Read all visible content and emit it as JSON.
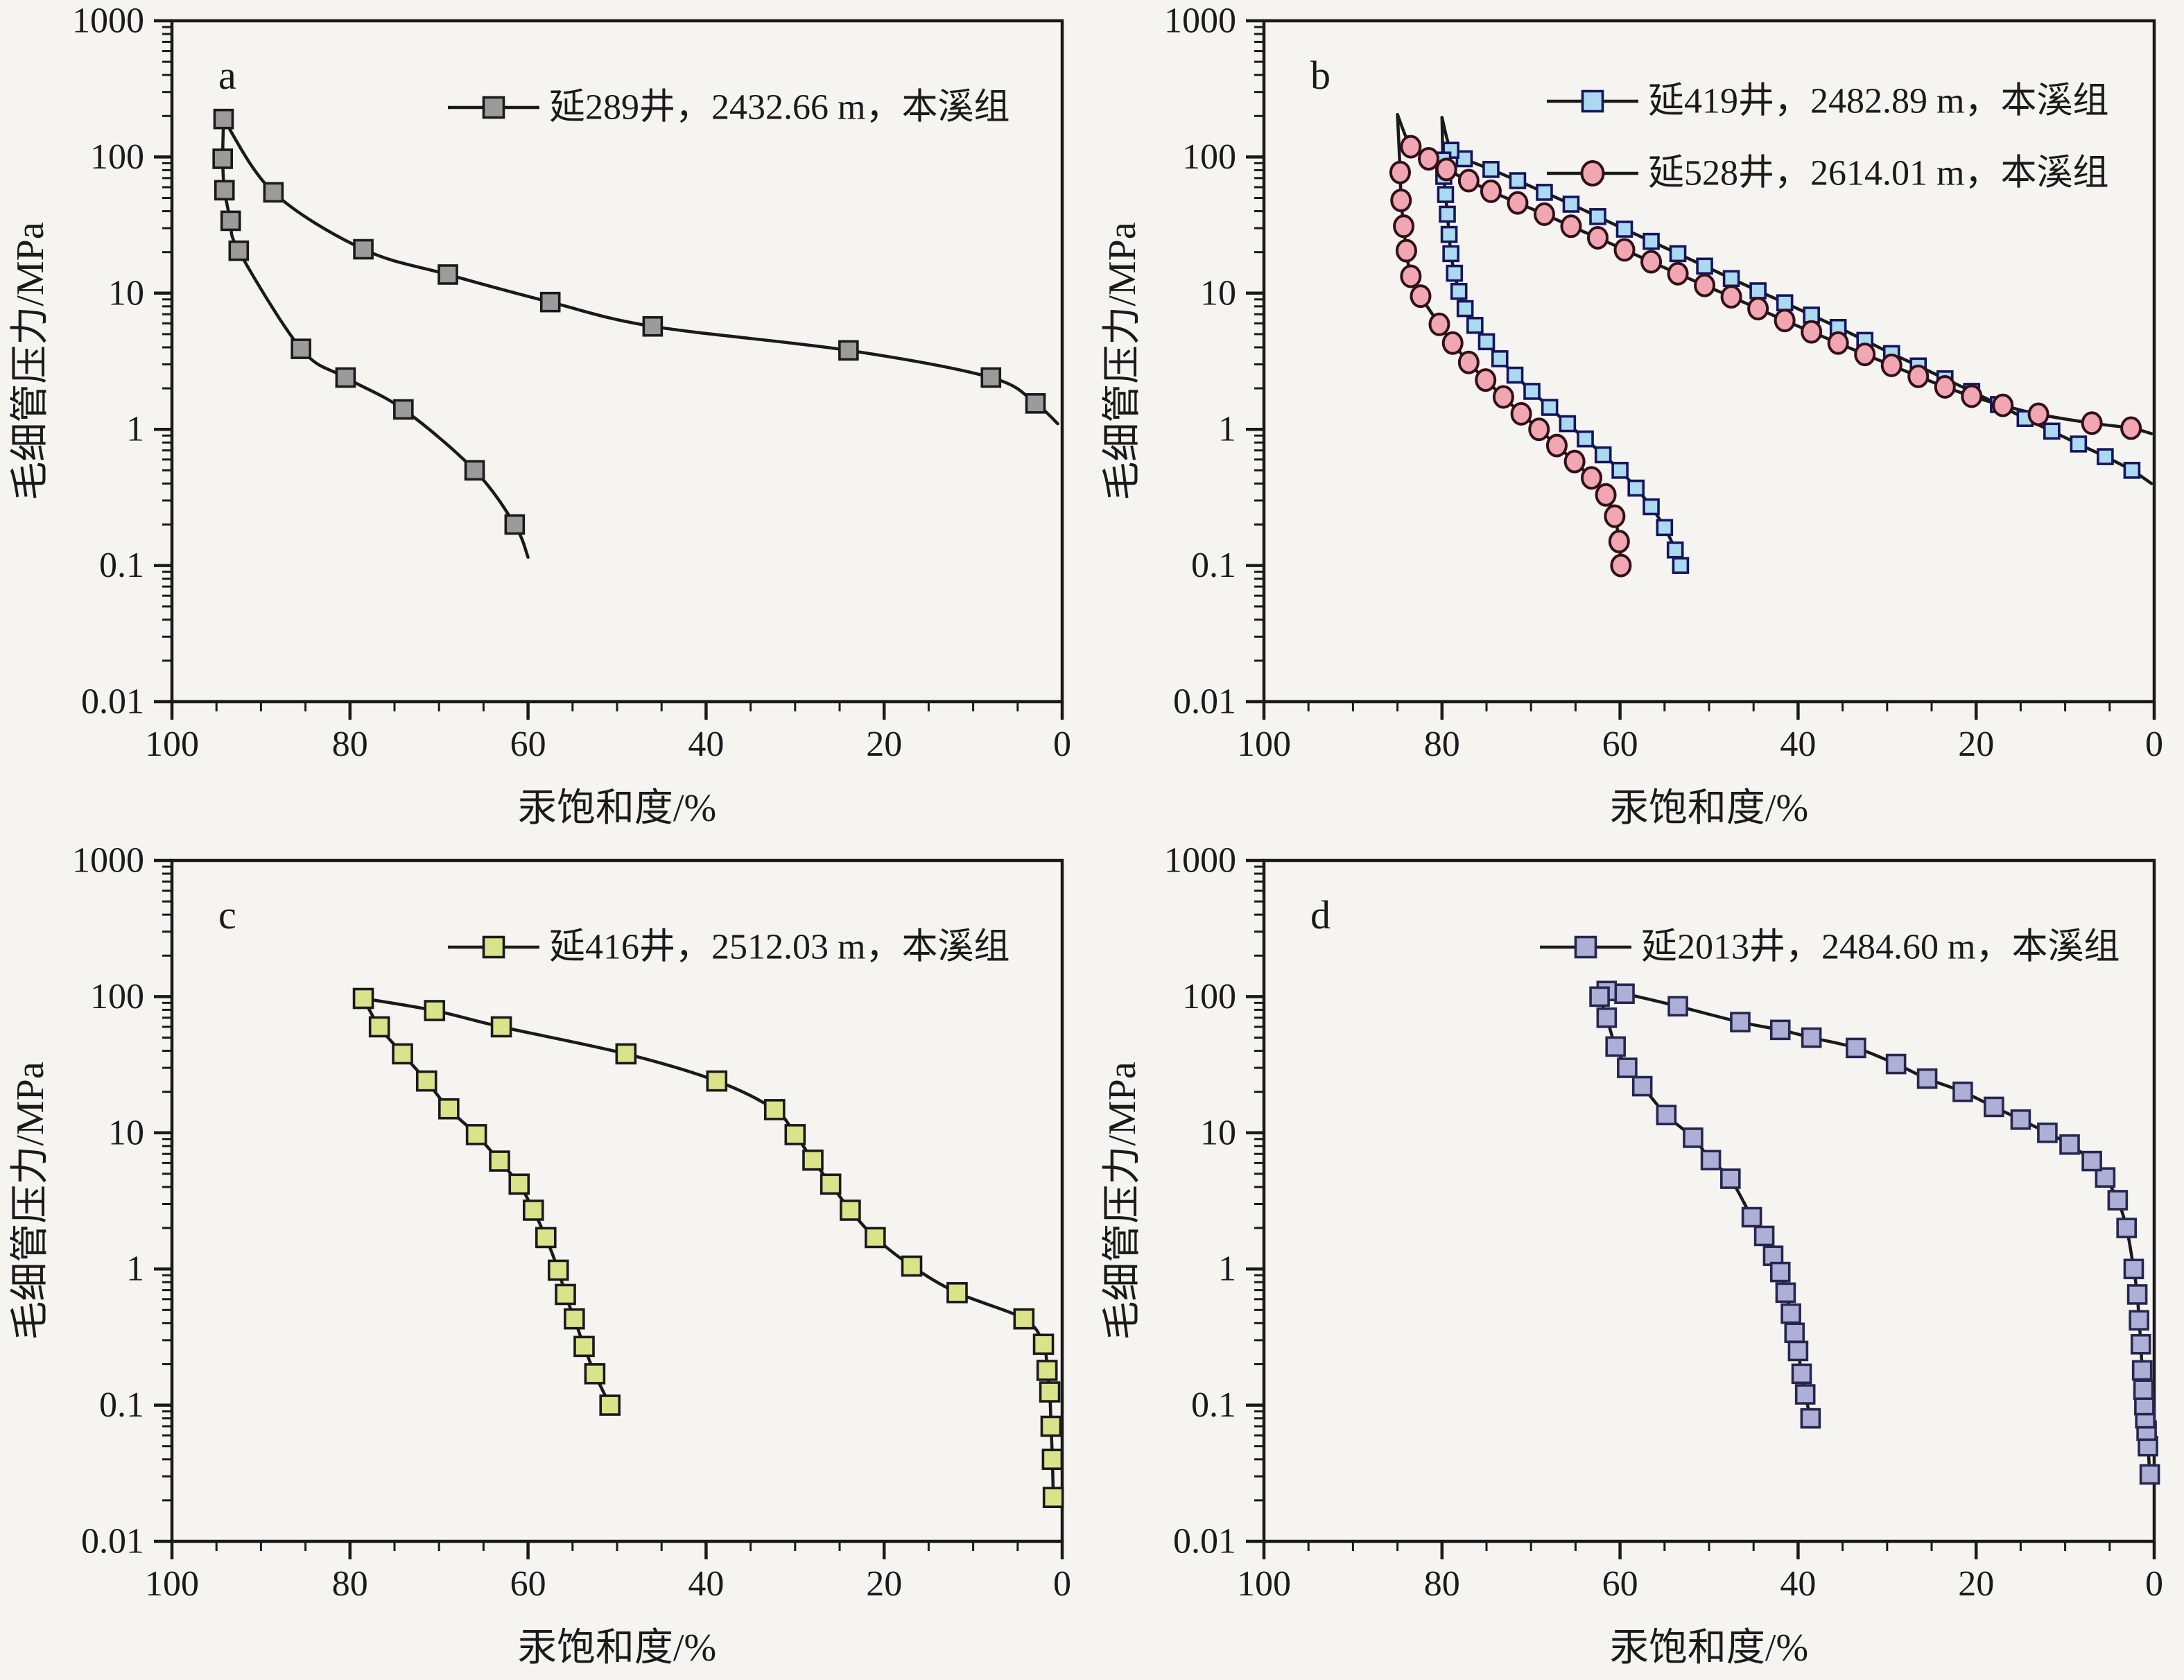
{
  "page": {
    "background": "#f5f4f1",
    "ink": "#1a1a1a"
  },
  "axes": {
    "xlabel": "汞饱和度/%",
    "ylabel": "毛细管压力/MPa",
    "x_ticks": [
      100,
      80,
      60,
      40,
      20,
      0
    ],
    "x_minor_step": 5,
    "x_range": [
      100,
      0
    ],
    "x_reversed": true,
    "y_scale": "log",
    "y_range": [
      0.01,
      1000
    ],
    "y_tick_labels": [
      "1000",
      "100",
      "10",
      "1",
      "0.1",
      "0.01"
    ],
    "grid": false,
    "legend_position": "top-right-inside"
  },
  "chart_data": [
    {
      "panel": "a",
      "type": "line",
      "panel_label": "a",
      "legend": [
        {
          "label": "延289井，2432.66 m，本溪组",
          "marker": "square",
          "fill": "#9b9b9b",
          "edge": "#1a1a1a"
        }
      ],
      "series": [
        {
          "branch": "intrusion",
          "marker": "square",
          "size": 26,
          "fill": "#9b9b9b",
          "edge": "#1a1a1a",
          "points": [
            [
              0.5,
              1.1,
              0
            ],
            [
              3,
              1.55
            ],
            [
              8,
              2.4
            ],
            [
              24,
              3.8
            ],
            [
              46,
              5.7
            ],
            [
              57.5,
              8.6
            ],
            [
              69,
              13.7
            ],
            [
              78.5,
              21
            ],
            [
              88.6,
              55
            ],
            [
              94.2,
              190
            ]
          ]
        },
        {
          "branch": "extrusion",
          "marker": "square",
          "size": 26,
          "fill": "#9b9b9b",
          "edge": "#1a1a1a",
          "points": [
            [
              94.2,
              190,
              0
            ],
            [
              94.3,
              97
            ],
            [
              94.1,
              57
            ],
            [
              93.4,
              34
            ],
            [
              92.5,
              20.5
            ],
            [
              85.5,
              3.9
            ],
            [
              80.5,
              2.4
            ],
            [
              74,
              1.4
            ],
            [
              66,
              0.5
            ],
            [
              61.5,
              0.2
            ],
            [
              60,
              0.115,
              0
            ]
          ]
        }
      ]
    },
    {
      "panel": "b",
      "type": "line",
      "panel_label": "b",
      "legend": [
        {
          "label": "延419井，2482.89 m，本溪组",
          "marker": "square",
          "fill": "#abd9f0",
          "edge": "#15155c"
        },
        {
          "label": "延528井，2614.01 m，本溪组",
          "marker": "circle",
          "fill": "#f1a7b2",
          "edge": "#331019"
        }
      ],
      "series": [
        {
          "branch": "intrusion",
          "well": "延419井",
          "marker": "square",
          "size": 21,
          "fill": "#abd9f0",
          "edge": "#15155c",
          "points": [
            [
              0.3,
              0.4,
              0
            ],
            [
              2.5,
              0.5
            ],
            [
              5.5,
              0.63
            ],
            [
              8.5,
              0.78
            ],
            [
              11.5,
              0.97
            ],
            [
              14.5,
              1.2
            ],
            [
              17.5,
              1.52
            ],
            [
              20.5,
              1.9
            ],
            [
              23.5,
              2.35
            ],
            [
              26.5,
              2.92
            ],
            [
              29.5,
              3.6
            ],
            [
              32.5,
              4.5
            ],
            [
              35.5,
              5.6
            ],
            [
              38.5,
              6.9
            ],
            [
              41.5,
              8.5
            ],
            [
              44.5,
              10.4
            ],
            [
              47.5,
              12.8
            ],
            [
              50.5,
              15.8
            ],
            [
              53.5,
              19.5
            ],
            [
              56.5,
              24
            ],
            [
              59.5,
              29.5
            ],
            [
              62.5,
              36.5
            ],
            [
              65.5,
              45
            ],
            [
              68.5,
              55
            ],
            [
              71.5,
              67
            ],
            [
              74.5,
              81
            ],
            [
              77.5,
              97
            ],
            [
              79,
              112
            ],
            [
              80,
              195,
              0
            ]
          ]
        },
        {
          "branch": "extrusion",
          "well": "延419井",
          "marker": "square",
          "size": 21,
          "fill": "#abd9f0",
          "edge": "#15155c",
          "points": [
            [
              80,
              195,
              0
            ],
            [
              79.9,
              95
            ],
            [
              79.8,
              72
            ],
            [
              79.6,
              53
            ],
            [
              79.4,
              38
            ],
            [
              79.2,
              27
            ],
            [
              79,
              19.5
            ],
            [
              78.6,
              14
            ],
            [
              78.1,
              10.3
            ],
            [
              77.4,
              7.7
            ],
            [
              76.3,
              5.8
            ],
            [
              75,
              4.4
            ],
            [
              73.5,
              3.3
            ],
            [
              71.8,
              2.5
            ],
            [
              69.9,
              1.9
            ],
            [
              67.9,
              1.45
            ],
            [
              65.9,
              1.1
            ],
            [
              63.9,
              0.85
            ],
            [
              61.9,
              0.65
            ],
            [
              60,
              0.5
            ],
            [
              58.2,
              0.37
            ],
            [
              56.5,
              0.27
            ],
            [
              55,
              0.19
            ],
            [
              53.8,
              0.13
            ],
            [
              53.2,
              0.1
            ]
          ]
        },
        {
          "branch": "intrusion",
          "well": "延528井",
          "marker": "circle",
          "size": 27,
          "fill": "#f1a7b2",
          "edge": "#331019",
          "points": [
            [
              0.3,
              0.93,
              0
            ],
            [
              2.6,
              1.02
            ],
            [
              7,
              1.11
            ],
            [
              13,
              1.29
            ],
            [
              17,
              1.5
            ],
            [
              20.5,
              1.75
            ],
            [
              23.5,
              2.05
            ],
            [
              26.5,
              2.45
            ],
            [
              29.5,
              2.95
            ],
            [
              32.5,
              3.55
            ],
            [
              35.5,
              4.3
            ],
            [
              38.5,
              5.2
            ],
            [
              41.5,
              6.3
            ],
            [
              44.5,
              7.7
            ],
            [
              47.5,
              9.4
            ],
            [
              50.5,
              11.4
            ],
            [
              53.5,
              13.9
            ],
            [
              56.5,
              17
            ],
            [
              59.5,
              20.8
            ],
            [
              62.5,
              25.5
            ],
            [
              65.5,
              31
            ],
            [
              68.5,
              38
            ],
            [
              71.5,
              46
            ],
            [
              74.5,
              56
            ],
            [
              77,
              67
            ],
            [
              79.5,
              81
            ],
            [
              81.5,
              97
            ],
            [
              83.5,
              119
            ],
            [
              85,
              205,
              0
            ]
          ]
        },
        {
          "branch": "extrusion",
          "well": "延528井",
          "marker": "circle",
          "size": 27,
          "fill": "#f1a7b2",
          "edge": "#331019",
          "points": [
            [
              85,
              205,
              0
            ],
            [
              84.7,
              77
            ],
            [
              84.6,
              48
            ],
            [
              84.3,
              31
            ],
            [
              84,
              20.5
            ],
            [
              83.5,
              13.3
            ],
            [
              82.4,
              9.5
            ],
            [
              80.3,
              5.9
            ],
            [
              78.8,
              4.3
            ],
            [
              77,
              3.1
            ],
            [
              75.1,
              2.3
            ],
            [
              73.1,
              1.73
            ],
            [
              71.1,
              1.3
            ],
            [
              69.1,
              1.0
            ],
            [
              67.1,
              0.76
            ],
            [
              65.1,
              0.58
            ],
            [
              63.2,
              0.44
            ],
            [
              61.6,
              0.33
            ],
            [
              60.6,
              0.23
            ],
            [
              60.1,
              0.15
            ],
            [
              59.9,
              0.1
            ]
          ]
        }
      ]
    },
    {
      "panel": "c",
      "type": "line",
      "panel_label": "c",
      "legend": [
        {
          "label": "延416井，2512.03 m，本溪组",
          "marker": "square",
          "fill": "#d9e38a",
          "edge": "#1a1a1a"
        }
      ],
      "series": [
        {
          "branch": "intrusion",
          "marker": "square",
          "size": 27,
          "fill": "#d9e38a",
          "edge": "#1a1a1a",
          "points": [
            [
              1.0,
              0.021
            ],
            [
              1.1,
              0.04
            ],
            [
              1.25,
              0.07
            ],
            [
              1.4,
              0.125
            ],
            [
              1.7,
              0.18
            ],
            [
              2.1,
              0.28
            ],
            [
              4.3,
              0.43
            ],
            [
              11.8,
              0.67
            ],
            [
              16.9,
              1.05
            ],
            [
              21,
              1.7
            ],
            [
              23.8,
              2.7
            ],
            [
              26,
              4.2
            ],
            [
              28,
              6.3
            ],
            [
              30,
              9.7
            ],
            [
              32.3,
              14.8
            ],
            [
              38.8,
              24
            ],
            [
              49,
              38
            ],
            [
              63,
              60
            ],
            [
              70.5,
              79
            ],
            [
              78.5,
              97
            ]
          ]
        },
        {
          "branch": "extrusion",
          "marker": "square",
          "size": 27,
          "fill": "#d9e38a",
          "edge": "#1a1a1a",
          "points": [
            [
              78.5,
              97,
              0
            ],
            [
              76.7,
              60
            ],
            [
              74.1,
              38
            ],
            [
              71.4,
              24
            ],
            [
              68.9,
              15
            ],
            [
              65.8,
              9.7
            ],
            [
              63.2,
              6.2
            ],
            [
              61,
              4.2
            ],
            [
              59.4,
              2.7
            ],
            [
              58,
              1.7
            ],
            [
              56.6,
              0.98
            ],
            [
              55.8,
              0.65
            ],
            [
              54.8,
              0.43
            ],
            [
              53.7,
              0.27
            ],
            [
              52.5,
              0.17
            ],
            [
              50.8,
              0.1
            ]
          ]
        }
      ]
    },
    {
      "panel": "d",
      "type": "line",
      "panel_label": "d",
      "legend": [
        {
          "label": "延2013井，2484.60 m，本溪组",
          "marker": "square",
          "fill": "#aeafd7",
          "edge": "#26264f"
        }
      ],
      "series": [
        {
          "branch": "intrusion",
          "marker": "square",
          "size": 26,
          "fill": "#aeafd7",
          "edge": "#26264f",
          "points": [
            [
              0.5,
              0.031
            ],
            [
              0.7,
              0.05
            ],
            [
              0.85,
              0.065
            ],
            [
              1.0,
              0.08
            ],
            [
              1.1,
              0.1
            ],
            [
              1.2,
              0.13
            ],
            [
              1.35,
              0.18
            ],
            [
              1.5,
              0.28
            ],
            [
              1.7,
              0.42
            ],
            [
              1.9,
              0.65
            ],
            [
              2.3,
              1.0
            ],
            [
              3.1,
              2.0
            ],
            [
              4.1,
              3.2
            ],
            [
              5.5,
              4.7
            ],
            [
              7,
              6.2
            ],
            [
              9.5,
              8.2
            ],
            [
              12,
              10
            ],
            [
              15,
              12.5
            ],
            [
              18,
              15.5
            ],
            [
              21.5,
              20
            ],
            [
              25.5,
              25
            ],
            [
              29,
              32
            ],
            [
              33.5,
              42
            ],
            [
              38.5,
              50
            ],
            [
              42,
              57
            ],
            [
              46.5,
              65
            ],
            [
              53.5,
              85
            ],
            [
              59.5,
              105
            ],
            [
              61.5,
              110
            ],
            [
              62.5,
              116,
              0
            ]
          ]
        },
        {
          "branch": "extrusion",
          "marker": "square",
          "size": 26,
          "fill": "#aeafd7",
          "edge": "#26264f",
          "points": [
            [
              62.5,
              116,
              0
            ],
            [
              62.3,
              100
            ],
            [
              61.5,
              70
            ],
            [
              60.5,
              43
            ],
            [
              59.2,
              30
            ],
            [
              57.5,
              22
            ],
            [
              54.8,
              13.5
            ],
            [
              51.8,
              9.2
            ],
            [
              49.8,
              6.3
            ],
            [
              47.6,
              4.6
            ],
            [
              45.2,
              2.4
            ],
            [
              43.8,
              1.75
            ],
            [
              42.8,
              1.25
            ],
            [
              42,
              0.95
            ],
            [
              41.4,
              0.67
            ],
            [
              40.8,
              0.47
            ],
            [
              40.4,
              0.34
            ],
            [
              40,
              0.25
            ],
            [
              39.6,
              0.17
            ],
            [
              39.2,
              0.12
            ],
            [
              38.6,
              0.08
            ]
          ]
        }
      ]
    }
  ]
}
